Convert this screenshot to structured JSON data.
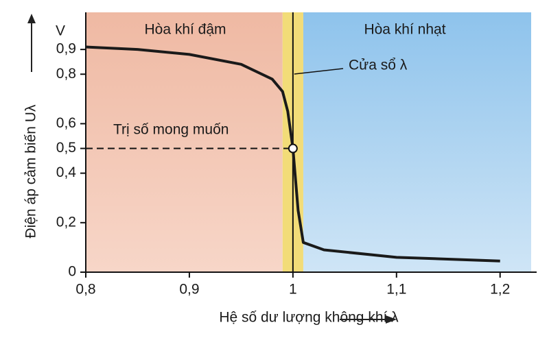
{
  "chart_data": {
    "type": "line",
    "x_label": "Hệ số dư lượng không khí λ",
    "y_label": "Điện áp cảm biến Uλ",
    "y_unit": "V",
    "xlim": [
      0.8,
      1.23
    ],
    "ylim": [
      0,
      1.05
    ],
    "xticks": [
      {
        "value": 0.8,
        "label": "0,8"
      },
      {
        "value": 0.9,
        "label": "0,9"
      },
      1,
      {
        "value": 1.1,
        "label": "1,1"
      },
      {
        "value": 1.2,
        "label": "1,2"
      }
    ],
    "yticks": [
      0,
      {
        "value": 0.2,
        "label": "0,2"
      },
      {
        "value": 0.4,
        "label": "0,4"
      },
      {
        "value": 0.5,
        "label": "0,5"
      },
      {
        "value": 0.6,
        "label": "0,6"
      },
      {
        "value": 0.8,
        "label": "0,8"
      },
      {
        "value": 0.9,
        "label": "0,9"
      }
    ],
    "rich_label": "Hòa khí đậm",
    "lean_label": "Hòa khí nhạt",
    "window_label": "Cửa sổ λ",
    "lambda_window": [
      0.99,
      1.01
    ],
    "target_label": "Trị số mong muốn",
    "target": {
      "x": 1.0,
      "y": 0.5
    },
    "series": [
      {
        "color": "#1a1a1a",
        "x": [
          0.8,
          0.85,
          0.9,
          0.95,
          0.98,
          0.99,
          0.995,
          1.0,
          1.005,
          1.01,
          1.03,
          1.1,
          1.2
        ],
        "values": [
          0.91,
          0.9,
          0.88,
          0.84,
          0.78,
          0.73,
          0.65,
          0.5,
          0.25,
          0.12,
          0.09,
          0.06,
          0.045
        ]
      }
    ]
  }
}
